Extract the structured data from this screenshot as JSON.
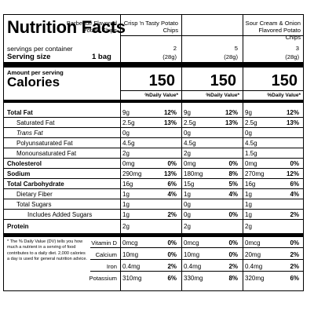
{
  "title": "Nutrition Facts",
  "servings_label": "servings per container",
  "serving_size_label": "Serving size",
  "serving_size_value": "1 bag",
  "amount_per_serving": "Amount per serving",
  "calories_label": "Calories",
  "dv_header": "%Daily Value*",
  "columns": [
    {
      "name": "Barbecue Flavored Potato Chips",
      "servings": "2",
      "grams": "(28g)",
      "calories": "150"
    },
    {
      "name": "Crisp 'n Tasty Potato Chips",
      "servings": "5",
      "grams": "(28g)",
      "calories": "150"
    },
    {
      "name": "Sour Cream & Onion Flavored Potato Chips",
      "servings": "3",
      "grams": "(28g)",
      "calories": "150"
    }
  ],
  "nutrients": [
    {
      "label": "Total Fat",
      "values": [
        [
          "9g",
          "12%"
        ],
        [
          "9g",
          "12%"
        ],
        [
          "9g",
          "12%"
        ]
      ]
    },
    {
      "label": "Saturated Fat",
      "values": [
        [
          "2.5g",
          "13%"
        ],
        [
          "2.5g",
          "13%"
        ],
        [
          "2.5g",
          "13%"
        ]
      ]
    },
    {
      "label": "Trans Fat",
      "values": [
        [
          "0g",
          ""
        ],
        [
          "0g",
          ""
        ],
        [
          "0g",
          ""
        ]
      ]
    },
    {
      "label": "Polyunsaturated Fat",
      "values": [
        [
          "4.5g",
          ""
        ],
        [
          "4.5g",
          ""
        ],
        [
          "4.5g",
          ""
        ]
      ]
    },
    {
      "label": "Monounsaturated Fat",
      "values": [
        [
          "2g",
          ""
        ],
        [
          "2g",
          ""
        ],
        [
          "1.5g",
          ""
        ]
      ]
    },
    {
      "label": "Cholesterol",
      "values": [
        [
          "0mg",
          "0%"
        ],
        [
          "0mg",
          "0%"
        ],
        [
          "0mg",
          "0%"
        ]
      ]
    },
    {
      "label": "Sodium",
      "values": [
        [
          "290mg",
          "13%"
        ],
        [
          "180mg",
          "8%"
        ],
        [
          "270mg",
          "12%"
        ]
      ]
    },
    {
      "label": "Total Carbohydrate",
      "values": [
        [
          "16g",
          "6%"
        ],
        [
          "15g",
          "5%"
        ],
        [
          "16g",
          "6%"
        ]
      ]
    },
    {
      "label": "Dietary Fiber",
      "values": [
        [
          "1g",
          "4%"
        ],
        [
          "1g",
          "4%"
        ],
        [
          "1g",
          "4%"
        ]
      ]
    },
    {
      "label": "Total Sugars",
      "values": [
        [
          "1g",
          ""
        ],
        [
          "0g",
          ""
        ],
        [
          "1g",
          ""
        ]
      ]
    },
    {
      "label": "Includes Added Sugars",
      "values": [
        [
          "1g",
          "2%"
        ],
        [
          "0g",
          "0%"
        ],
        [
          "1g",
          "2%"
        ]
      ]
    },
    {
      "label": "Protein",
      "values": [
        [
          "2g",
          ""
        ],
        [
          "2g",
          ""
        ],
        [
          "2g",
          ""
        ]
      ]
    }
  ],
  "footnote": "* The % Daily Value (DV) tells you how much a nutrient in a serving of food contributes to a daily diet. 2,000 calories a day is used for general nutrition advice.",
  "vitamins": [
    {
      "label": "Vitamin D",
      "values": [
        [
          "0mcg",
          "0%"
        ],
        [
          "0mcg",
          "0%"
        ],
        [
          "0mcg",
          "0%"
        ]
      ]
    },
    {
      "label": "Calcium",
      "values": [
        [
          "10mg",
          "0%"
        ],
        [
          "10mg",
          "0%"
        ],
        [
          "20mg",
          "2%"
        ]
      ]
    },
    {
      "label": "Iron",
      "values": [
        [
          "0.4mg",
          "2%"
        ],
        [
          "0.4mg",
          "2%"
        ],
        [
          "0.4mg",
          "2%"
        ]
      ]
    },
    {
      "label": "Potassium",
      "values": [
        [
          "310mg",
          "6%"
        ],
        [
          "330mg",
          "8%"
        ],
        [
          "320mg",
          "6%"
        ]
      ]
    }
  ]
}
